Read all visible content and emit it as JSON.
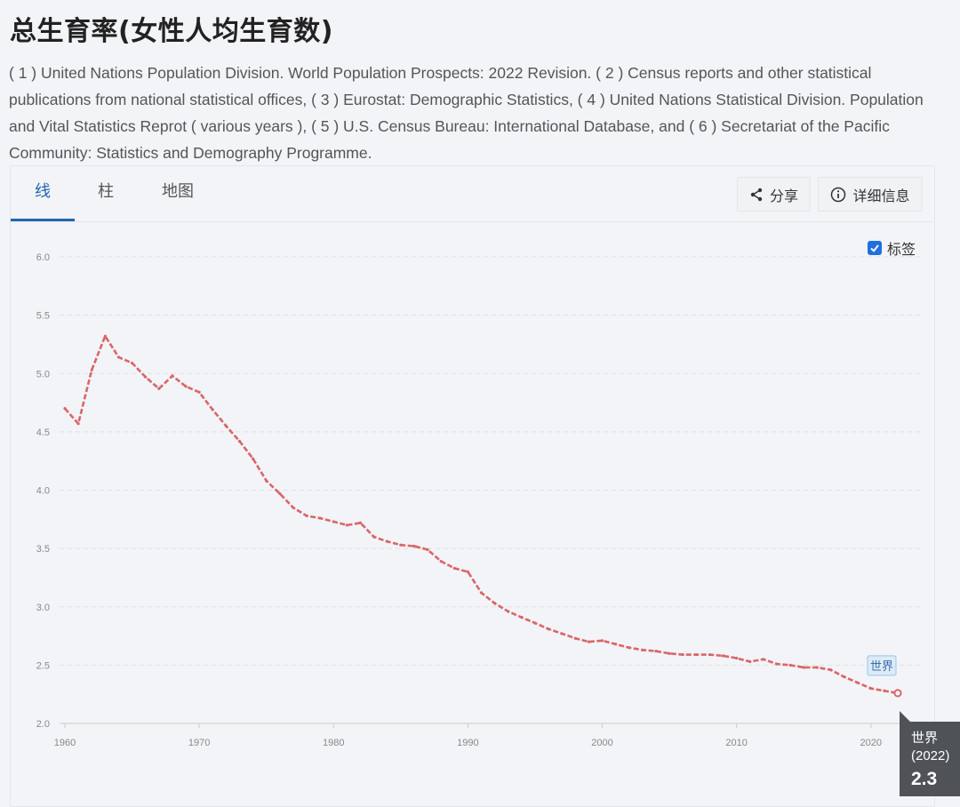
{
  "page": {
    "title": "总生育率(女性人均生育数)",
    "source": "( 1 ) United Nations Population Division. World Population Prospects: 2022 Revision. ( 2 ) Census reports and other statistical publications from national statistical offices, ( 3 ) Eurostat: Demographic Statistics, ( 4 ) United Nations Statistical Division. Population and Vital Statistics Reprot ( various years ), ( 5 ) U.S. Census Bureau: International Database, and ( 6 ) Secretariat of the Pacific Community: Statistics and Demography Programme."
  },
  "tabs": [
    {
      "label": "线",
      "active": true
    },
    {
      "label": "柱",
      "active": false
    },
    {
      "label": "地图",
      "active": false
    }
  ],
  "toolbar": {
    "share_label": "分享",
    "share_icon": "share-icon",
    "info_label": "详细信息",
    "info_icon": "info-icon"
  },
  "label_toggle": {
    "label": "标签",
    "checked": true
  },
  "hover": {
    "name": "世界",
    "year": "(2022)",
    "value": "2.3"
  },
  "colors": {
    "line": "#d9666a",
    "accent": "#2266b0",
    "grid": "#e0e0e0"
  },
  "chart_data": {
    "type": "line",
    "x": [
      1960,
      1961,
      1962,
      1963,
      1964,
      1965,
      1966,
      1967,
      1968,
      1969,
      1970,
      1971,
      1972,
      1973,
      1974,
      1975,
      1976,
      1977,
      1978,
      1979,
      1980,
      1981,
      1982,
      1983,
      1984,
      1985,
      1986,
      1987,
      1988,
      1989,
      1990,
      1991,
      1992,
      1993,
      1994,
      1995,
      1996,
      1997,
      1998,
      1999,
      2000,
      2001,
      2002,
      2003,
      2004,
      2005,
      2006,
      2007,
      2008,
      2009,
      2010,
      2011,
      2012,
      2013,
      2014,
      2015,
      2016,
      2017,
      2018,
      2019,
      2020,
      2021,
      2022
    ],
    "series": [
      {
        "name": "世界",
        "values": [
          4.7,
          4.57,
          5.03,
          5.32,
          5.14,
          5.09,
          4.97,
          4.87,
          4.98,
          4.89,
          4.84,
          4.69,
          4.55,
          4.42,
          4.27,
          4.08,
          3.97,
          3.85,
          3.78,
          3.76,
          3.73,
          3.7,
          3.72,
          3.6,
          3.56,
          3.53,
          3.52,
          3.49,
          3.39,
          3.33,
          3.3,
          3.12,
          3.03,
          2.96,
          2.91,
          2.86,
          2.81,
          2.77,
          2.73,
          2.7,
          2.71,
          2.68,
          2.65,
          2.63,
          2.62,
          2.6,
          2.59,
          2.59,
          2.59,
          2.58,
          2.56,
          2.53,
          2.55,
          2.51,
          2.5,
          2.48,
          2.48,
          2.46,
          2.4,
          2.35,
          2.3,
          2.28,
          2.26
        ]
      }
    ],
    "xticks": [
      1960,
      1970,
      1980,
      1990,
      2000,
      2010,
      2020
    ],
    "yticks": [
      "2.0",
      "2.5",
      "3.0",
      "3.5",
      "4.0",
      "4.5",
      "5.0",
      "5.5",
      "6.0"
    ],
    "ylim": [
      2.0,
      6.0
    ],
    "xlim": [
      1960,
      2022
    ],
    "end_label": "世界",
    "grid": true,
    "xlabel": "",
    "ylabel": ""
  }
}
